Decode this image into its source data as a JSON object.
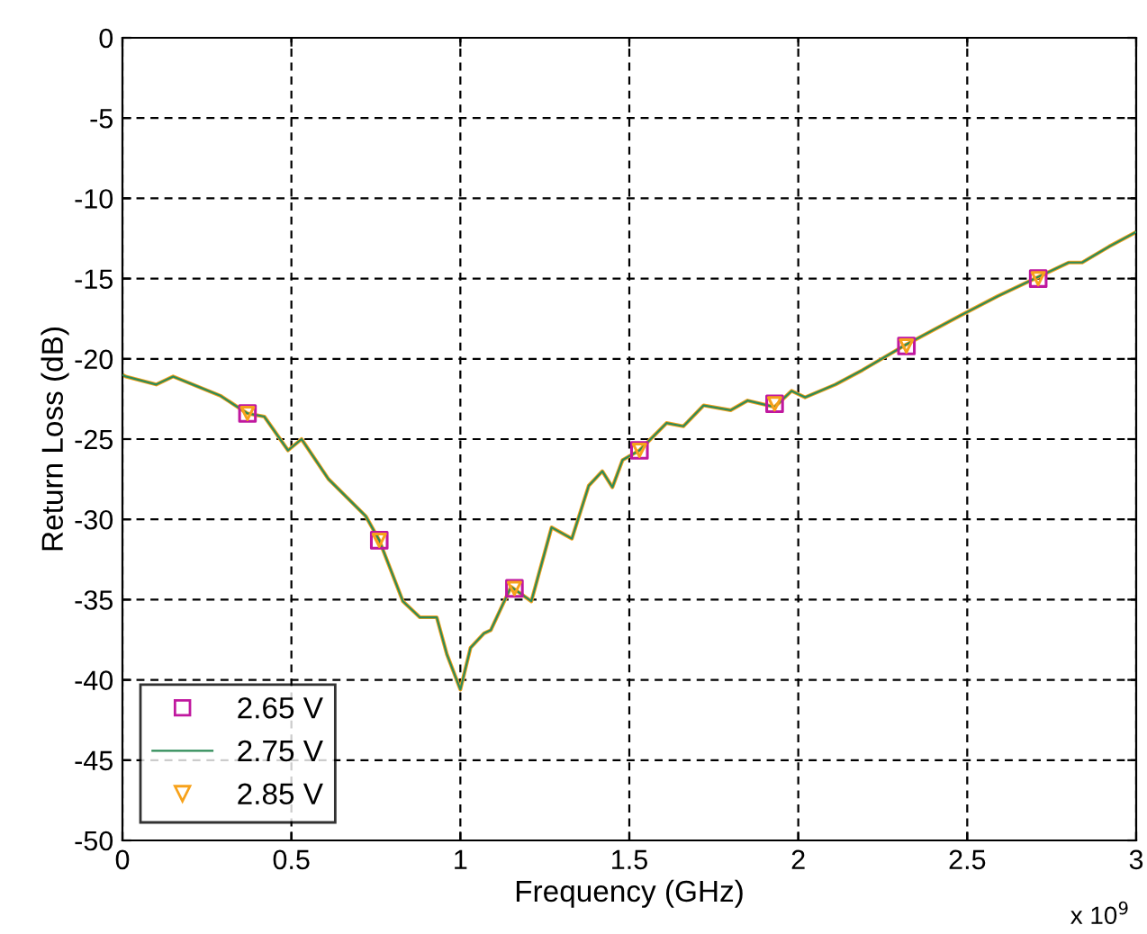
{
  "chart_data": {
    "type": "line",
    "xlabel": "Frequency (GHz)",
    "ylabel": "Return Loss (dB)",
    "annotations": [
      "x 10$^{9}$"
    ],
    "xlim": [
      0,
      3
    ],
    "ylim": [
      -50,
      0
    ],
    "xticks": [
      0,
      0.5,
      1,
      1.5,
      2,
      2.5,
      3
    ],
    "yticks": [
      -50,
      -45,
      -40,
      -35,
      -30,
      -25,
      -20,
      -15,
      -10,
      -5,
      0
    ],
    "grid": true,
    "legend": "bottom left",
    "x": [
      0,
      0.01,
      0.1,
      0.15,
      0.22,
      0.29,
      0.37,
      0.42,
      0.49,
      0.53,
      0.61,
      0.72,
      0.76,
      0.83,
      0.88,
      0.93,
      0.96,
      1.0,
      1.03,
      1.07,
      1.09,
      1.15,
      1.21,
      1.27,
      1.33,
      1.38,
      1.42,
      1.45,
      1.48,
      1.53,
      1.61,
      1.66,
      1.72,
      1.8,
      1.85,
      1.93,
      1.98,
      2.02,
      2.11,
      2.19,
      2.32,
      2.48,
      2.59,
      2.71,
      2.8,
      2.84,
      2.92,
      3.0
    ],
    "series": [
      {
        "color": "#f7a21b",
        "line_style": "solid",
        "values": [
          -21.0,
          -21.1,
          -21.6,
          -21.1,
          -21.7,
          -22.3,
          -23.4,
          -23.6,
          -25.7,
          -25.0,
          -27.5,
          -29.8,
          -31.3,
          -35.1,
          -36.1,
          -36.1,
          -38.4,
          -40.6,
          -38.0,
          -37.1,
          -36.9,
          -34.2,
          -35.1,
          -30.5,
          -31.2,
          -27.9,
          -27.0,
          -28.0,
          -26.3,
          -25.7,
          -24.0,
          -24.2,
          -22.9,
          -23.2,
          -22.6,
          -23.0,
          -22.0,
          -22.4,
          -21.6,
          -20.7,
          -19.1,
          -17.3,
          -16.1,
          -14.9,
          -14.0,
          -14.0,
          -13.0,
          -12.1
        ]
      },
      {
        "name": "2.75 V",
        "color": "#2e8b57",
        "line_style": "solid",
        "values": [
          -21.0,
          -21.1,
          -21.6,
          -21.1,
          -21.7,
          -22.3,
          -23.4,
          -23.6,
          -25.7,
          -25.0,
          -27.5,
          -29.8,
          -31.3,
          -35.1,
          -36.1,
          -36.1,
          -38.4,
          -40.6,
          -38.0,
          -37.1,
          -36.9,
          -34.2,
          -35.1,
          -30.5,
          -31.2,
          -27.9,
          -27.0,
          -28.0,
          -26.3,
          -25.7,
          -24.0,
          -24.2,
          -22.9,
          -23.2,
          -22.6,
          -23.0,
          -22.0,
          -22.4,
          -21.6,
          -20.7,
          -19.1,
          -17.3,
          -16.1,
          -14.9,
          -14.0,
          -14.0,
          -13.0,
          -12.1
        ]
      },
      {
        "name": "2.65 V",
        "type": "scatter",
        "marker": "square",
        "color": "#c0189f",
        "x": [
          0.37,
          0.76,
          1.16,
          1.53,
          1.93,
          2.32,
          2.71
        ],
        "values": [
          -23.4,
          -31.3,
          -34.3,
          -25.7,
          -22.8,
          -19.2,
          -15.0
        ]
      },
      {
        "name": "2.85 V",
        "type": "scatter",
        "marker": "triangle",
        "color": "#f7a21b",
        "x": [
          0.37,
          0.76,
          1.16,
          1.53,
          1.93,
          2.32,
          2.71
        ],
        "values": [
          -23.4,
          -31.3,
          -34.3,
          -25.7,
          -22.8,
          -19.2,
          -15.0
        ]
      }
    ]
  }
}
